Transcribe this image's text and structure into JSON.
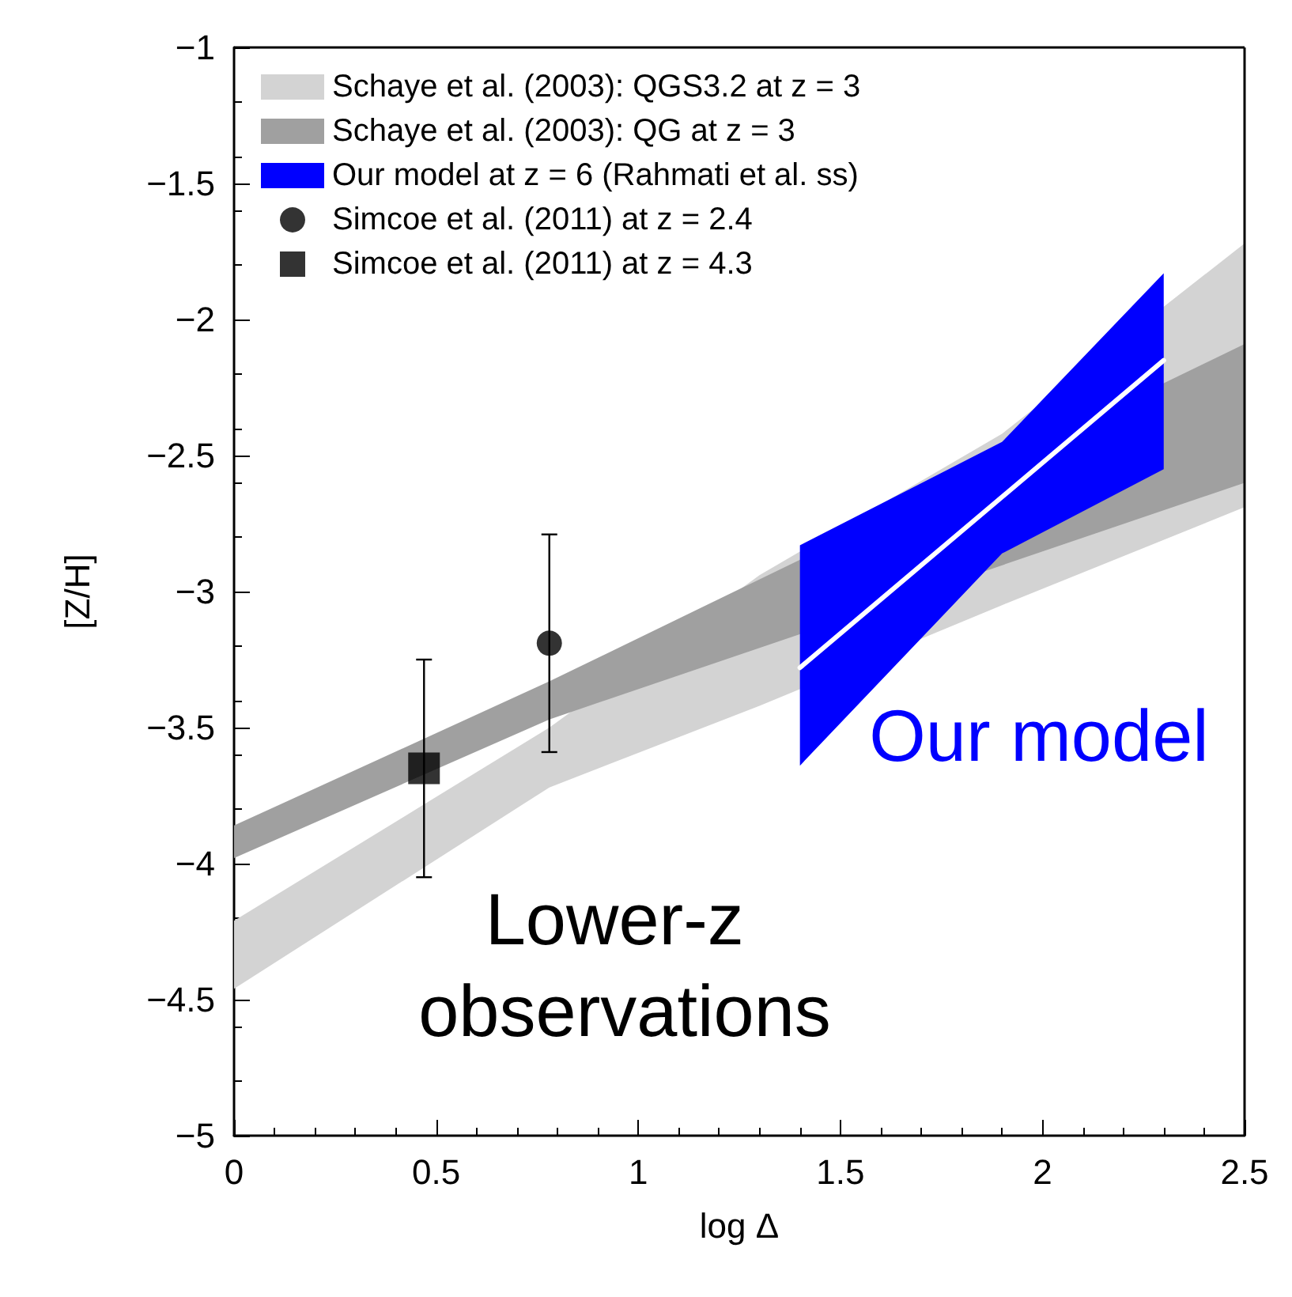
{
  "chart_data": {
    "type": "line",
    "xlabel": "log Δ",
    "ylabel": "[Z/H]",
    "xlim": [
      0,
      2.5
    ],
    "xticks": [
      0,
      0.5,
      1,
      1.5,
      2,
      2.5
    ],
    "ylim": [
      -5,
      -1
    ],
    "yticks": [
      -5,
      -4.5,
      -4,
      -3.5,
      -3,
      -2.5,
      -2,
      -1.5,
      -1
    ],
    "grid": false,
    "legend": "top left",
    "series": [
      {
        "type": "area",
        "name": "Schaye et al. (2003): QGS3.2 at z = 3",
        "color": "#d3d3d3",
        "x": [
          0,
          0.78,
          1.3,
          1.9,
          2.5
        ],
        "values": [
          null,
          null,
          null,
          null,
          null
        ],
        "lower": [
          -4.46,
          -3.72,
          -3.42,
          -3.05,
          -2.69
        ],
        "upper": [
          -4.21,
          -3.5,
          -2.94,
          -2.42,
          -1.72
        ]
      },
      {
        "type": "area",
        "name": "Schaye et al. (2003): QG at z = 3",
        "color": "#a0a0a0",
        "x": [
          0,
          0.78,
          2.5
        ],
        "values": [
          null,
          null,
          null
        ],
        "lower": [
          -3.98,
          -3.47,
          -2.6
        ],
        "upper": [
          -3.86,
          -3.33,
          -2.09
        ]
      },
      {
        "type": "area",
        "name": "Our model at z = 6 (Rahmati et al. ss)",
        "color": "#0000ff",
        "x": [
          1.4,
          1.9,
          2.3
        ],
        "values": [
          null,
          null,
          null
        ],
        "lower": [
          -3.64,
          -2.86,
          -2.55
        ],
        "upper": [
          -2.83,
          -2.45,
          -1.83
        ]
      },
      {
        "color": "#ffffff",
        "x": [
          1.4,
          2.3
        ],
        "values": [
          -3.28,
          -2.15
        ],
        "marker": "none"
      },
      {
        "type": "scatter",
        "name": "Simcoe et al. (2011) at z = 2.4",
        "color": "#000000",
        "marker": "circle",
        "x": [
          0.78
        ],
        "values": [
          -3.19
        ],
        "errors": [
          0.4
        ]
      },
      {
        "type": "scatter",
        "name": "Simcoe et al. (2011) at z = 4.3",
        "color": "#000000",
        "marker": "square",
        "x": [
          0.47
        ],
        "values": [
          -3.65
        ],
        "errors": [
          0.4
        ]
      }
    ],
    "annotations": [
      "Lower-z observations",
      "Our model"
    ]
  }
}
